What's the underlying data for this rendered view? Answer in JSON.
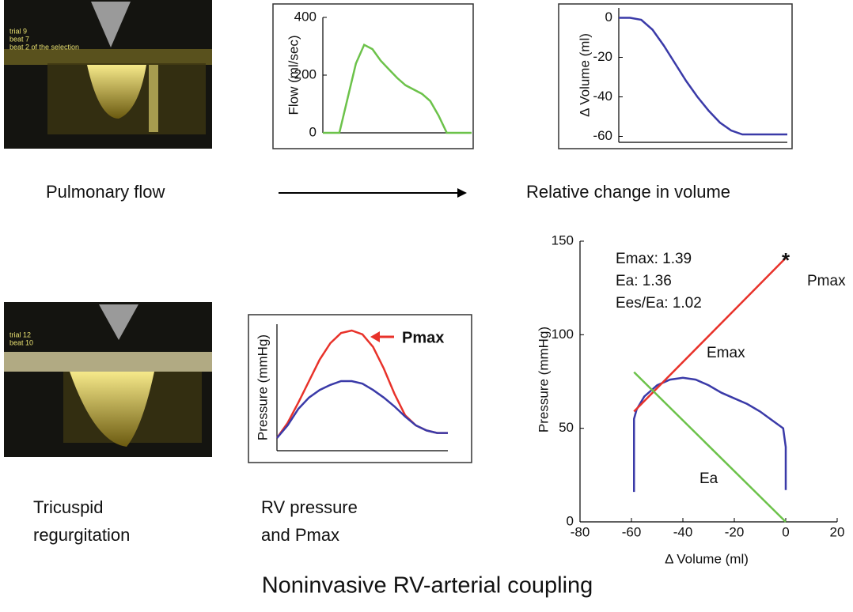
{
  "chart_data": [
    {
      "type": "line",
      "y_label": "Flow (ml/sec)",
      "categories": [
        null,
        null,
        null,
        null,
        null,
        null,
        null,
        null,
        null,
        null,
        null,
        null,
        null,
        null,
        null,
        null,
        null,
        null,
        null
      ],
      "series": [
        {
          "color": "#6cc24a",
          "values": [
            0,
            0,
            0,
            120,
            240,
            305,
            290,
            250,
            220,
            190,
            165,
            150,
            135,
            110,
            60,
            0,
            0,
            0,
            0
          ]
        }
      ],
      "ylim": [
        0,
        400
      ],
      "yticks": [
        0,
        200,
        400
      ]
    },
    {
      "type": "line",
      "y_label": "Δ Volume (ml)",
      "categories": [
        null,
        null,
        null,
        null,
        null,
        null,
        null,
        null,
        null,
        null,
        null,
        null,
        null,
        null,
        null,
        null
      ],
      "series": [
        {
          "color": "#3a3aa8",
          "values": [
            0,
            0,
            -1,
            -6,
            -14,
            -23,
            -32,
            -40,
            -47,
            -53,
            -57,
            -59,
            -59,
            -59,
            -59,
            -59
          ]
        }
      ],
      "ylim": [
        -63,
        5
      ],
      "yticks": [
        0,
        -20,
        -40,
        -60
      ]
    },
    {
      "type": "line",
      "y_label": "Pressure (mmHg)",
      "annotation": "Pmax",
      "categories": [
        null,
        null,
        null,
        null,
        null,
        null,
        null,
        null,
        null,
        null,
        null,
        null,
        null,
        null,
        null,
        null,
        null
      ],
      "series": [
        {
          "color": "#e8322a",
          "values": [
            10,
            22,
            38,
            55,
            72,
            85,
            93,
            95,
            92,
            82,
            65,
            45,
            28,
            20,
            16,
            14,
            14
          ]
        },
        {
          "color": "#3a3aa8",
          "values": [
            10,
            20,
            33,
            42,
            48,
            52,
            55,
            55,
            53,
            48,
            42,
            35,
            27,
            20,
            16,
            14,
            14
          ]
        }
      ],
      "ylim": [
        0,
        100
      ]
    },
    {
      "type": "line",
      "x_label": "Δ Volume (ml)",
      "y_label": "Pressure (mmHg)",
      "annotations": [
        "Emax: 1.39",
        "Ea: 1.36",
        "Ees/Ea: 1.02",
        "Pmax",
        "Emax",
        "Ea"
      ],
      "series": [
        {
          "color": "#3a3aa8",
          "x": [
            -59,
            -59,
            -58,
            -55,
            -50,
            -45,
            -40,
            -35,
            -30,
            -25,
            -20,
            -15,
            -10,
            -5,
            -1,
            0,
            0
          ],
          "values": [
            16,
            55,
            60,
            67,
            73,
            76,
            77,
            76,
            73,
            69,
            66,
            63,
            59,
            54,
            50,
            40,
            17
          ]
        },
        {
          "color": "#e8322a",
          "x": [
            -59,
            0
          ],
          "values": [
            59,
            141
          ]
        },
        {
          "color": "#6cc24a",
          "x": [
            -59,
            0
          ],
          "values": [
            80,
            0
          ]
        },
        {
          "color": "#000000",
          "marker": "star",
          "x": [
            0
          ],
          "values": [
            141
          ]
        }
      ],
      "xlim": [
        -80,
        20
      ],
      "xticks": [
        -80,
        -60,
        -40,
        -20,
        0,
        20
      ],
      "ylim": [
        0,
        150
      ],
      "yticks": [
        0,
        50,
        100,
        150
      ]
    }
  ],
  "echo_images": [
    {
      "caption": [
        "trial 9",
        "beat 7",
        "beat 2 of the selection"
      ]
    },
    {
      "caption": [
        "trial 12",
        "beat 10"
      ]
    }
  ],
  "labels": {
    "pulmonary_flow": "Pulmonary flow",
    "relative_volume": "Relative change in volume",
    "tricuspid": [
      "Tricuspid",
      "regurgitation"
    ],
    "rv_pressure": [
      "RV pressure",
      "and Pmax"
    ]
  },
  "title": "Noninvasive RV-arterial coupling"
}
